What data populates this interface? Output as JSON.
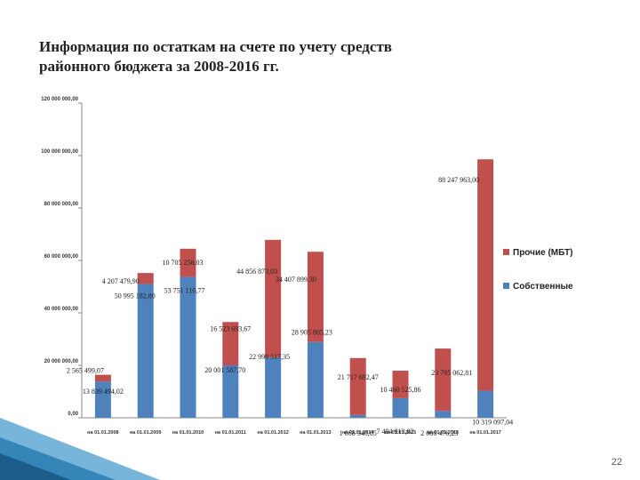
{
  "slide": {
    "title_line1": "Информация по остаткам на счете по учету средств",
    "title_line2": "районного бюджета за 2008-2016 гг.",
    "page_number": "22"
  },
  "chart_data": {
    "type": "bar",
    "stacked": true,
    "title": "Информация по остаткам на счете по учету средств районного бюджета за 2008-2016 гг.",
    "xlabel": "",
    "ylabel": "",
    "ylim": [
      0,
      120000000
    ],
    "yticks": [
      "0,00",
      "20 000 000,00",
      "40 000 000,00",
      "60 000 000,00",
      "80 000 000,00",
      "100 000 000,00",
      "120 000 000,00"
    ],
    "grid": false,
    "legend_position": "right",
    "categories": [
      "на 01.01.2008",
      "на 01.01.2009",
      "на 01.01.2010",
      "на 01.01.2011",
      "на 01.01.2012",
      "на 01.01.2013",
      "на 01.01.2014",
      "на 01.01.2015",
      "на 01.01.2016",
      "на 01.01.2017"
    ],
    "series": [
      {
        "name": "Собственные",
        "color": "#4f81bd",
        "values": [
          13839494.02,
          50995182.8,
          53751110.77,
          20001587.7,
          22998517.35,
          28905805.23,
          1068340.05,
          7494913.82,
          2606476.23,
          10319097.04
        ],
        "labels": [
          "13 839 494,02",
          "50 995 182,80",
          "53 751 110,77",
          "20 001 587,70",
          "22 998 517,35",
          "28 905 805,23",
          "1 068 340,05",
          "7 494 913,82",
          "2 606 476,23",
          "10 319 097,04"
        ]
      },
      {
        "name": "Прочие (МБТ)",
        "color": "#c0504d",
        "values": [
          2565499.07,
          4207479.9,
          10705258.03,
          16523693.67,
          44856873.03,
          34407899.3,
          21717692.47,
          10460525.86,
          23795062.81,
          88247963.0
        ],
        "labels": [
          "2 565 499,07",
          "4 207 479,90",
          "10 705 258,03",
          "16 523 693,67",
          "44 856 873,03",
          "34 407 899,30",
          "21 717 692,47",
          "10 460 525,86",
          "23 795 062,81",
          "88 247 963,00"
        ]
      }
    ]
  }
}
